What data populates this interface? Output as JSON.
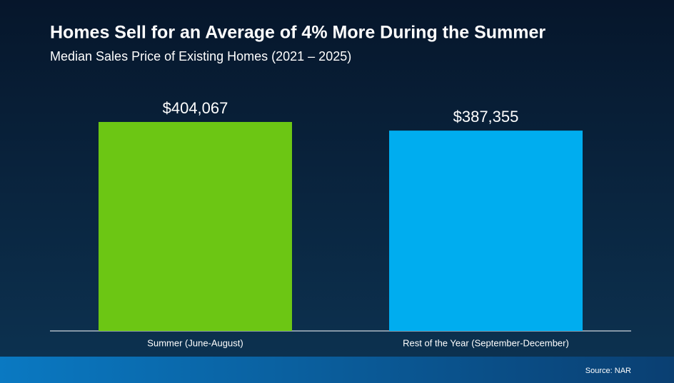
{
  "chart_data": {
    "type": "bar",
    "title": "Homes Sell for an Average of 4% More During the Summer",
    "subtitle": "Median Sales Price of Existing Homes (2021 – 2025)",
    "categories": [
      "Summer (June-August)",
      "Rest of the Year (September-December)"
    ],
    "values": [
      404067,
      387355
    ],
    "value_labels": [
      "$404,067",
      "$387,355"
    ],
    "colors": [
      "#6cc614",
      "#00adef"
    ],
    "source": "Source: NAR"
  }
}
